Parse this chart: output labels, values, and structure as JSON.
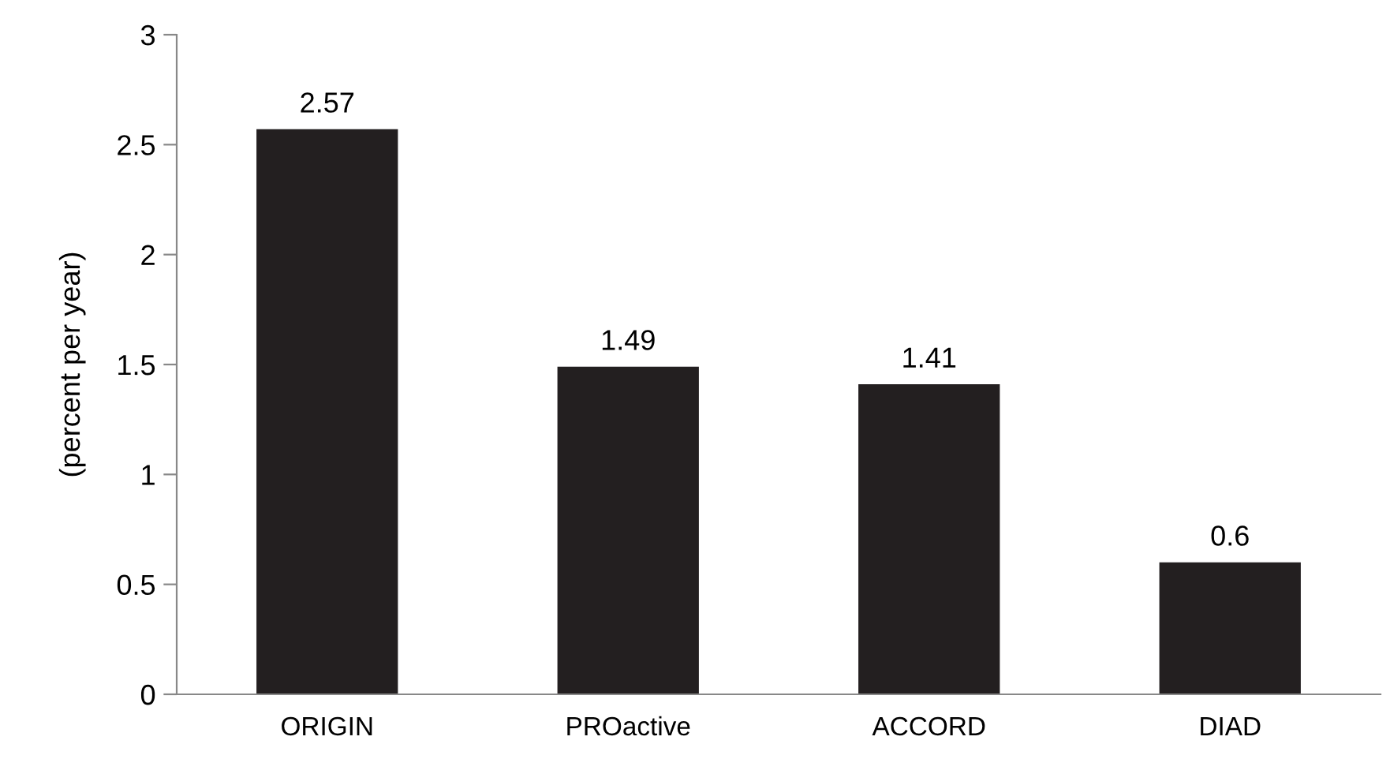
{
  "chart_data": {
    "type": "bar",
    "ylabel": "(percent per year)",
    "categories": [
      "ORIGIN",
      "PROactive",
      "ACCORD",
      "DIAD"
    ],
    "values": [
      2.57,
      1.49,
      1.41,
      0.6
    ],
    "color": "#231f20",
    "ylim": [
      0,
      3
    ],
    "yticks": [
      0,
      0.5,
      1,
      1.5,
      2,
      2.5,
      3
    ],
    "data_labels": true,
    "grid": false,
    "legend": false
  }
}
